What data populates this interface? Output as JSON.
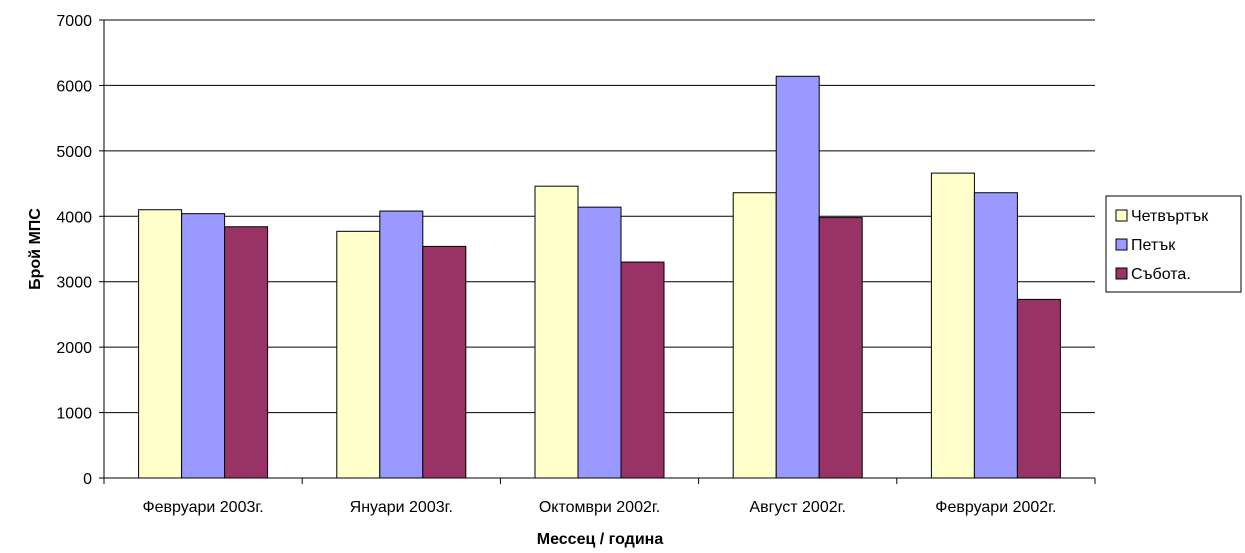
{
  "chart_data": {
    "type": "bar",
    "title": "",
    "xlabel": "Мессец / година",
    "ylabel": "Брой МПС",
    "ylim": [
      0,
      7000
    ],
    "yticks": [
      0,
      1000,
      2000,
      3000,
      4000,
      5000,
      6000,
      7000
    ],
    "grid": true,
    "legend_position": "right",
    "categories": [
      "Февруари 2003г.",
      "Януари 2003г.",
      "Октомври 2002г.",
      "Август 2002г.",
      "Февруари 2002г."
    ],
    "series": [
      {
        "name": "Четвъртък",
        "color": "#ffffcc",
        "values": [
          4100,
          3770,
          4460,
          4360,
          4660
        ]
      },
      {
        "name": "Петък",
        "color": "#9999ff",
        "values": [
          4040,
          4080,
          4140,
          6140,
          4360
        ]
      },
      {
        "name": "Събота.",
        "color": "#993366",
        "values": [
          3840,
          3540,
          3300,
          3980,
          2730
        ]
      }
    ]
  }
}
